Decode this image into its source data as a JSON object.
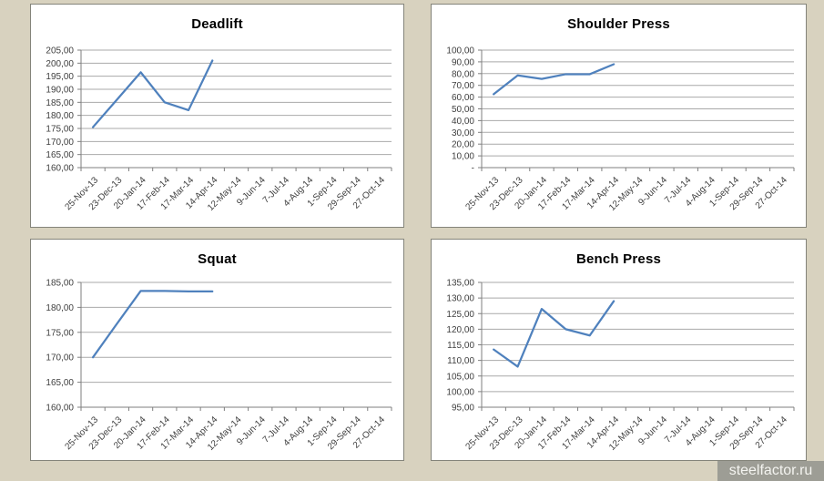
{
  "page": {
    "background_color": "#d8d2bf",
    "panel_border_color": "#84847a"
  },
  "watermark": {
    "label": "steelfactor.ru",
    "bar_color": "#9d9d95",
    "text_color": "#f4f4f0"
  },
  "colors": {
    "series_line": "#4f81bd",
    "gridline": "#a9a9a9",
    "axis_line": "#7f7f7f",
    "tick_label": "#404040"
  },
  "chart_data": [
    {
      "type": "line",
      "title": "Deadlift",
      "categories": [
        "25-Nov-13",
        "23-Dec-13",
        "20-Jan-14",
        "17-Feb-14",
        "17-Mar-14",
        "14-Apr-14",
        "12-May-14",
        "9-Jun-14",
        "7-Jul-14",
        "4-Aug-14",
        "1-Sep-14",
        "29-Sep-14",
        "27-Oct-14"
      ],
      "series": [
        {
          "name": "Deadlift",
          "values": [
            175.5,
            186,
            196.5,
            185,
            182,
            201,
            null,
            null,
            null,
            null,
            null,
            null,
            null
          ]
        }
      ],
      "ylim": [
        160,
        205
      ],
      "ytick_step": 5,
      "ytick_labels": [
        "205,00",
        "200,00",
        "195,00",
        "190,00",
        "185,00",
        "180,00",
        "175,00",
        "170,00",
        "165,00",
        "160,00"
      ],
      "xlabel": "",
      "ylabel": "",
      "grid": true,
      "legend": false
    },
    {
      "type": "line",
      "title": "Shoulder Press",
      "categories": [
        "25-Nov-13",
        "23-Dec-13",
        "20-Jan-14",
        "17-Feb-14",
        "17-Mar-14",
        "14-Apr-14",
        "12-May-14",
        "9-Jun-14",
        "7-Jul-14",
        "4-Aug-14",
        "1-Sep-14",
        "29-Sep-14",
        "27-Oct-14"
      ],
      "series": [
        {
          "name": "Shoulder Press",
          "values": [
            62.5,
            78.5,
            75.5,
            79.5,
            79.5,
            88,
            null,
            null,
            null,
            null,
            null,
            null,
            null
          ]
        }
      ],
      "ylim": [
        0,
        100
      ],
      "ytick_step": 10,
      "ytick_labels": [
        "100,00",
        "90,00",
        "80,00",
        "70,00",
        "60,00",
        "50,00",
        "40,00",
        "30,00",
        "20,00",
        "10,00",
        "-"
      ],
      "xlabel": "",
      "ylabel": "",
      "grid": true,
      "legend": false
    },
    {
      "type": "line",
      "title": "Squat",
      "categories": [
        "25-Nov-13",
        "23-Dec-13",
        "20-Jan-14",
        "17-Feb-14",
        "17-Mar-14",
        "14-Apr-14",
        "12-May-14",
        "9-Jun-14",
        "7-Jul-14",
        "4-Aug-14",
        "1-Sep-14",
        "29-Sep-14",
        "27-Oct-14"
      ],
      "series": [
        {
          "name": "Squat",
          "values": [
            170,
            176.7,
            183.3,
            183.3,
            183.2,
            183.2,
            null,
            null,
            null,
            null,
            null,
            null,
            null
          ]
        }
      ],
      "ylim": [
        160,
        185
      ],
      "ytick_step": 5,
      "ytick_labels": [
        "185,00",
        "180,00",
        "175,00",
        "170,00",
        "165,00",
        "160,00"
      ],
      "xlabel": "",
      "ylabel": "",
      "grid": true,
      "legend": false
    },
    {
      "type": "line",
      "title": "Bench Press",
      "categories": [
        "25-Nov-13",
        "23-Dec-13",
        "20-Jan-14",
        "17-Feb-14",
        "17-Mar-14",
        "14-Apr-14",
        "12-May-14",
        "9-Jun-14",
        "7-Jul-14",
        "4-Aug-14",
        "1-Sep-14",
        "29-Sep-14",
        "27-Oct-14"
      ],
      "series": [
        {
          "name": "Bench Press",
          "values": [
            113.5,
            108,
            126.5,
            120,
            118,
            129,
            null,
            null,
            null,
            null,
            null,
            null,
            null
          ]
        }
      ],
      "ylim": [
        95,
        135
      ],
      "ytick_step": 5,
      "ytick_labels": [
        "135,00",
        "130,00",
        "125,00",
        "120,00",
        "115,00",
        "110,00",
        "105,00",
        "100,00",
        "95,00"
      ],
      "xlabel": "",
      "ylabel": "",
      "grid": true,
      "legend": false
    }
  ]
}
